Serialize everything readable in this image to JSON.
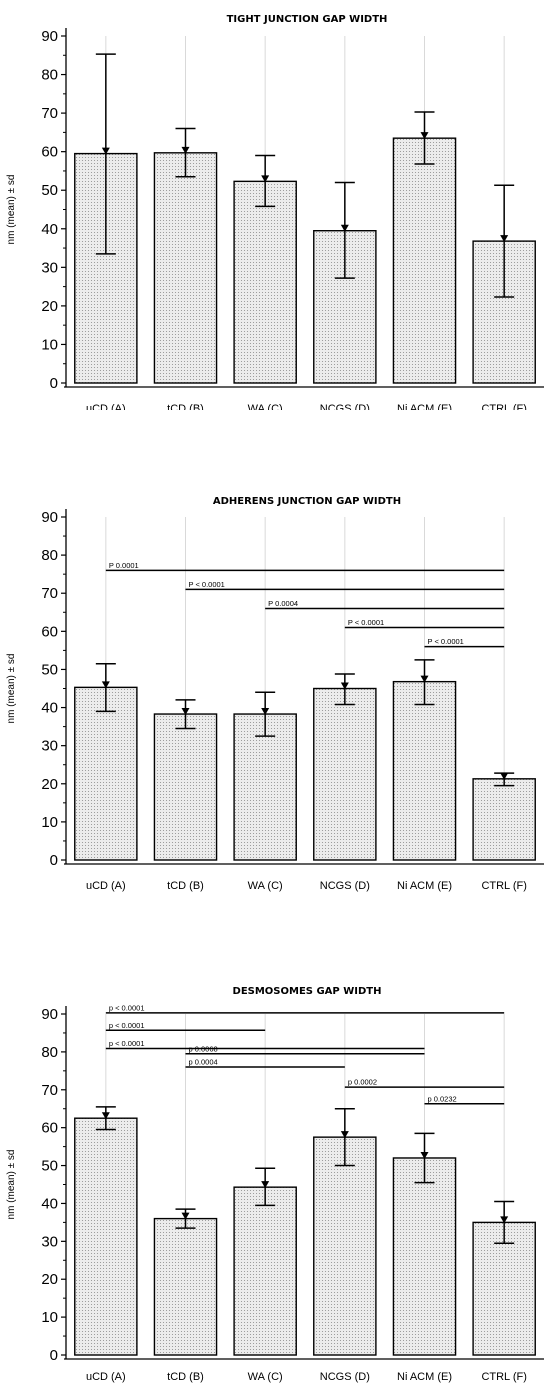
{
  "chart_data": [
    {
      "type": "bar",
      "title": "TIGHT JUNCTION GAP WIDTH",
      "ylabel": "nm (mean) ± sd",
      "xlabel": "",
      "ylim": [
        0,
        90
      ],
      "yticks": [
        0,
        10,
        20,
        30,
        40,
        50,
        60,
        70,
        80,
        90
      ],
      "grid": "vertical",
      "categories": [
        "uCD (A)",
        "tCD (B)",
        "WA (C)",
        "NCGS (D)",
        "Ni ACM (E)",
        "CTRL (F)"
      ],
      "values": [
        59.5,
        59.7,
        52.3,
        39.5,
        63.5,
        36.8
      ],
      "error_low": [
        33.5,
        53.5,
        45.8,
        27.2,
        56.8,
        22.3
      ],
      "error_high": [
        85.3,
        66.0,
        59.0,
        52.0,
        70.3,
        51.3
      ],
      "comparisons": []
    },
    {
      "type": "bar",
      "title": "ADHERENS JUNCTION GAP WIDTH",
      "ylabel": "nm (mean) ± sd",
      "xlabel": "",
      "ylim": [
        0,
        90
      ],
      "yticks": [
        0,
        10,
        20,
        30,
        40,
        50,
        60,
        70,
        80,
        90
      ],
      "grid": "vertical",
      "categories": [
        "uCD (A)",
        "tCD (B)",
        "WA (C)",
        "NCGS (D)",
        "Ni ACM (E)",
        "CTRL (F)"
      ],
      "values": [
        45.3,
        38.3,
        38.3,
        45.0,
        46.8,
        21.3
      ],
      "error_low": [
        39.0,
        34.5,
        32.5,
        40.8,
        40.8,
        19.5
      ],
      "error_high": [
        51.5,
        42.0,
        44.0,
        48.8,
        52.5,
        22.8
      ],
      "comparisons": [
        {
          "from": 0,
          "to": 5,
          "y": 76.0,
          "label": "P 0.0001"
        },
        {
          "from": 1,
          "to": 5,
          "y": 71.0,
          "label": "P < 0.0001"
        },
        {
          "from": 2,
          "to": 5,
          "y": 66.0,
          "label": "P 0.0004"
        },
        {
          "from": 3,
          "to": 5,
          "y": 61.0,
          "label": "P < 0.0001"
        },
        {
          "from": 4,
          "to": 5,
          "y": 56.0,
          "label": "P < 0.0001"
        }
      ]
    },
    {
      "type": "bar",
      "title": "DESMOSOMES GAP WIDTH",
      "ylabel": "nm (mean) ± sd",
      "xlabel": "",
      "ylim": [
        0,
        90
      ],
      "yticks": [
        0,
        10,
        20,
        30,
        40,
        50,
        60,
        70,
        80,
        90
      ],
      "grid": "vertical",
      "categories": [
        "uCD (A)",
        "tCD (B)",
        "WA (C)",
        "NCGS (D)",
        "Ni ACM (E)",
        "CTRL (F)"
      ],
      "values": [
        62.5,
        36.0,
        44.3,
        57.5,
        52.0,
        35.0
      ],
      "error_low": [
        59.5,
        33.5,
        39.5,
        50.0,
        45.5,
        29.5
      ],
      "error_high": [
        65.5,
        38.5,
        49.3,
        65.0,
        58.5,
        40.5
      ],
      "comparisons": [
        {
          "from": 0,
          "to": 5,
          "y": 90.3,
          "label": "p < 0.0001"
        },
        {
          "from": 0,
          "to": 2,
          "y": 85.7,
          "label": "p < 0.0001"
        },
        {
          "from": 0,
          "to": 4,
          "y": 80.9,
          "label": "p < 0.0001"
        },
        {
          "from": 1,
          "to": 4,
          "y": 79.5,
          "label": "p 0.0068"
        },
        {
          "from": 1,
          "to": 3,
          "y": 76.0,
          "label": "p 0.0004"
        },
        {
          "from": 3,
          "to": 5,
          "y": 70.7,
          "label": "p 0.0002"
        },
        {
          "from": 4,
          "to": 5,
          "y": 66.3,
          "label": "p 0.0232"
        }
      ]
    }
  ]
}
